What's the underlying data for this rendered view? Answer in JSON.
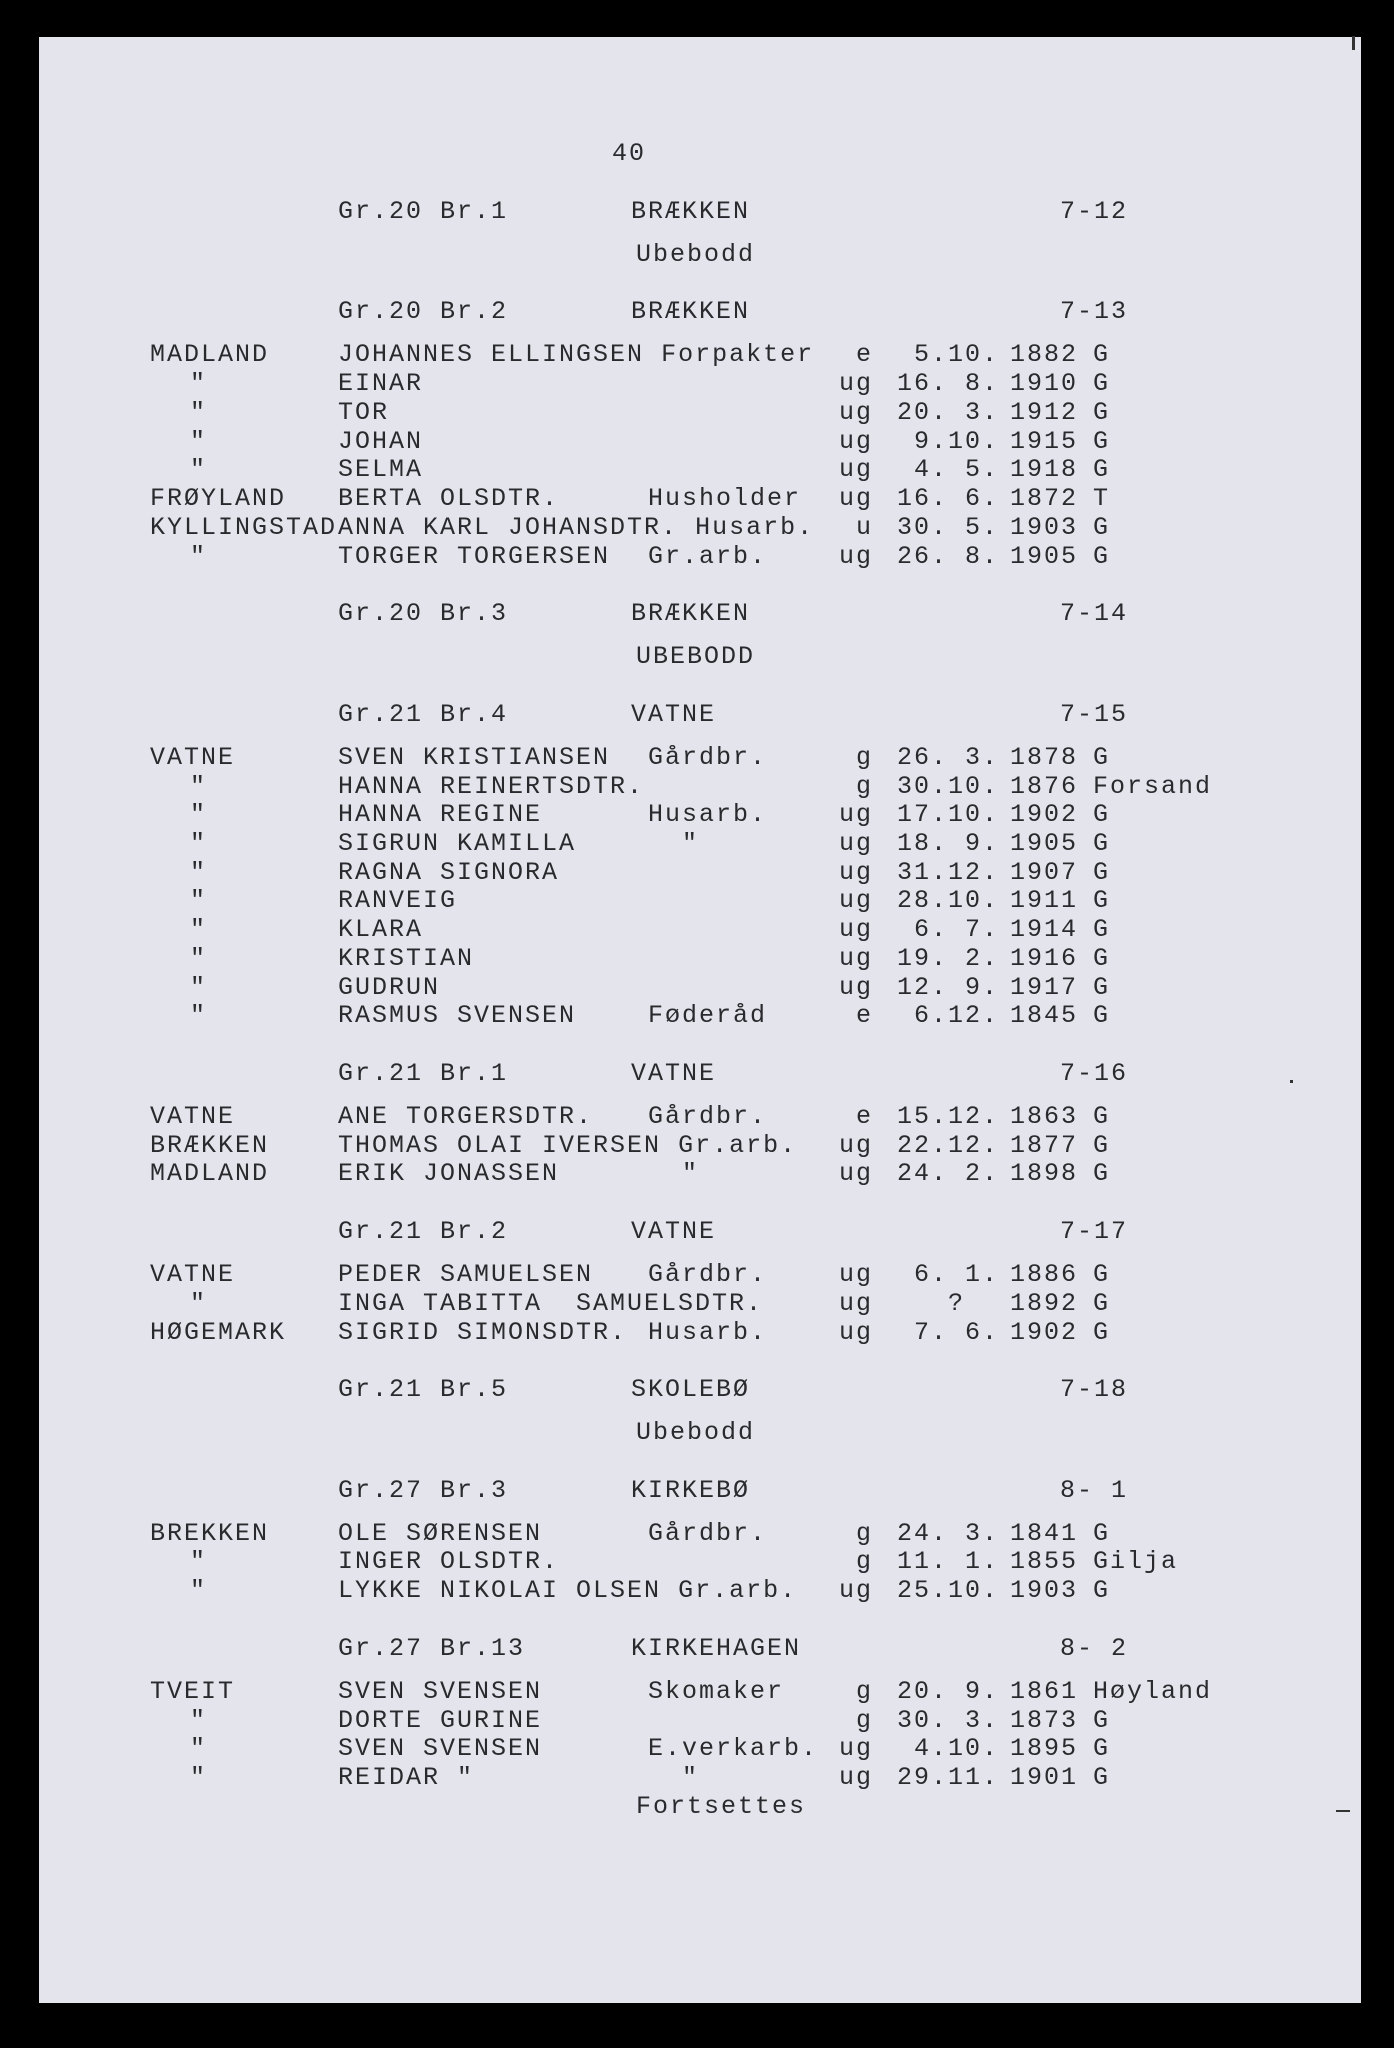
{
  "page_number": "40",
  "footer": "Fortsettes",
  "sections": [
    {
      "group": "Gr.20 Br.1",
      "place": "BRÆKKEN",
      "code": "7-12",
      "note": "Ubebodd",
      "rows": []
    },
    {
      "group": "Gr.20 Br.2",
      "place": "BRÆKKEN",
      "code": "7-13",
      "rows": [
        [
          "MADLAND",
          "JOHANNES ELLINGSEN",
          "Forpakter",
          "e",
          "5.10.",
          "1882",
          "G"
        ],
        [
          "\"",
          "EINAR",
          "",
          "ug",
          "16. 8.",
          "1910",
          "G"
        ],
        [
          "\"",
          "TOR",
          "",
          "ug",
          "20. 3.",
          "1912",
          "G"
        ],
        [
          "\"",
          "JOHAN",
          "",
          "ug",
          "9.10.",
          "1915",
          "G"
        ],
        [
          "\"",
          "SELMA",
          "",
          "ug",
          "4. 5.",
          "1918",
          "G"
        ],
        [
          "FRØYLAND",
          "BERTA OLSDTR.",
          "Husholder",
          "ug",
          "16. 6.",
          "1872",
          "T"
        ],
        [
          "KYLLINGSTAD",
          "ANNA KARL JOHANSDTR.",
          "Husarb.",
          "u",
          "30. 5.",
          "1903",
          "G"
        ],
        [
          "\"",
          "TORGER TORGERSEN",
          "Gr.arb.",
          "ug",
          "26. 8.",
          "1905",
          "G"
        ]
      ]
    },
    {
      "group": "Gr.20 Br.3",
      "place": "BRÆKKEN",
      "code": "7-14",
      "note": "UBEBODD",
      "rows": []
    },
    {
      "group": "Gr.21 Br.4",
      "place": "VATNE",
      "code": "7-15",
      "rows": [
        [
          "VATNE",
          "SVEN KRISTIANSEN",
          "Gårdbr.",
          "g",
          "26. 3.",
          "1878",
          "G"
        ],
        [
          "\"",
          "HANNA REINERTSDTR.",
          "",
          "g",
          "30.10.",
          "1876",
          "Forsand"
        ],
        [
          "\"",
          "HANNA REGINE",
          "Husarb.",
          "ug",
          "17.10.",
          "1902",
          "G"
        ],
        [
          "\"",
          "SIGRUN KAMILLA",
          "  \"",
          "ug",
          "18. 9.",
          "1905",
          "G"
        ],
        [
          "\"",
          "RAGNA SIGNORA",
          "",
          "ug",
          "31.12.",
          "1907",
          "G"
        ],
        [
          "\"",
          "RANVEIG",
          "",
          "ug",
          "28.10.",
          "1911",
          "G"
        ],
        [
          "\"",
          "KLARA",
          "",
          "ug",
          "6. 7.",
          "1914",
          "G"
        ],
        [
          "\"",
          "KRISTIAN",
          "",
          "ug",
          "19. 2.",
          "1916",
          "G"
        ],
        [
          "\"",
          "GUDRUN",
          "",
          "ug",
          "12. 9.",
          "1917",
          "G"
        ],
        [
          "\"",
          "RASMUS SVENSEN",
          "Føderåd",
          "e",
          "6.12.",
          "1845",
          "G"
        ]
      ]
    },
    {
      "group": "Gr.21 Br.1",
      "place": "VATNE",
      "code": "7-16",
      "rows": [
        [
          "VATNE",
          "ANE TORGERSDTR.",
          "Gårdbr.",
          "e",
          "15.12.",
          "1863",
          "G"
        ],
        [
          "BRÆKKEN",
          "THOMAS OLAI IVERSEN",
          "Gr.arb.",
          "ug",
          "22.12.",
          "1877",
          "G"
        ],
        [
          "MADLAND",
          "ERIK JONASSEN",
          "  \"",
          "ug",
          "24. 2.",
          "1898",
          "G"
        ]
      ]
    },
    {
      "group": "Gr.21 Br.2",
      "place": "VATNE",
      "code": "7-17",
      "rows": [
        [
          "VATNE",
          "PEDER SAMUELSEN",
          "Gårdbr.",
          "ug",
          "6. 1.",
          "1886",
          "G"
        ],
        [
          "\"",
          "INGA TABITTA  SAMUELSDTR.",
          "",
          "ug",
          "?  ",
          "1892",
          "G"
        ],
        [
          "HØGEMARK",
          "SIGRID SIMONSDTR.",
          "Husarb.",
          "ug",
          "7. 6.",
          "1902",
          "G"
        ]
      ]
    },
    {
      "group": "Gr.21 Br.5",
      "place": "SKOLEBØ",
      "code": "7-18",
      "note": "Ubebodd",
      "rows": []
    },
    {
      "group": "Gr.27 Br.3",
      "place": "KIRKEBØ",
      "code": "8- 1",
      "rows": [
        [
          "BREKKEN",
          "OLE SØRENSEN",
          "Gårdbr.",
          "g",
          "24. 3.",
          "1841",
          "G"
        ],
        [
          "\"",
          "INGER OLSDTR.",
          "",
          "g",
          "11. 1.",
          "1855",
          "Gilja"
        ],
        [
          "\"",
          "LYKKE NIKOLAI OLSEN",
          "Gr.arb.",
          "ug",
          "25.10.",
          "1903",
          "G"
        ]
      ]
    },
    {
      "group": "Gr.27 Br.13",
      "place": "KIRKEHAGEN",
      "code": "8- 2",
      "rows": [
        [
          "TVEIT",
          "SVEN SVENSEN",
          "Skomaker",
          "g",
          "20. 9.",
          "1861",
          "Høyland"
        ],
        [
          "\"",
          "DORTE GURINE",
          "",
          "g",
          "30. 3.",
          "1873",
          "G"
        ],
        [
          "\"",
          "SVEN SVENSEN",
          "E.verkarb.",
          "ug",
          "4.10.",
          "1895",
          "G"
        ],
        [
          "\"",
          "REIDAR \"",
          "  \"",
          "ug",
          "29.11.",
          "1901",
          "G"
        ]
      ]
    }
  ]
}
